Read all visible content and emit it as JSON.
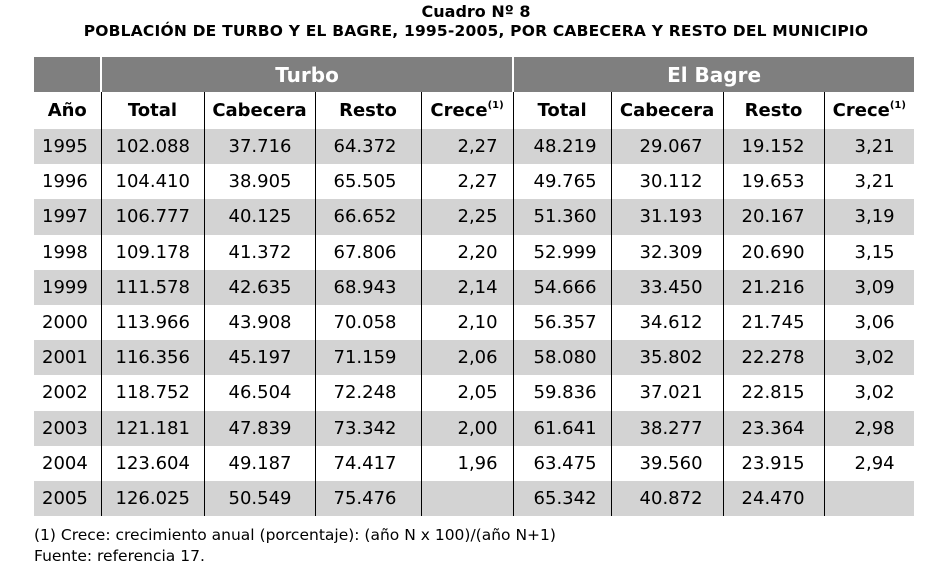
{
  "title": "Cuadro Nº 8",
  "subtitle": "POBLACIÓN DE TURBO Y EL BAGRE, 1995-2005, POR CABECERA Y RESTO DEL MUNICIPIO",
  "groups": {
    "turbo": "Turbo",
    "el_bagre": "El Bagre"
  },
  "headers": {
    "year": "Año",
    "total": "Total",
    "cabecera": "Cabecera",
    "resto": "Resto",
    "crece": "Crece",
    "crece_note": "(1)"
  },
  "rows": [
    [
      "1995",
      "102.088",
      "37.716",
      "64.372",
      "2,27",
      "48.219",
      "29.067",
      "19.152",
      "3,21"
    ],
    [
      "1996",
      "104.410",
      "38.905",
      "65.505",
      "2,27",
      "49.765",
      "30.112",
      "19.653",
      "3,21"
    ],
    [
      "1997",
      "106.777",
      "40.125",
      "66.652",
      "2,25",
      "51.360",
      "31.193",
      "20.167",
      "3,19"
    ],
    [
      "1998",
      "109.178",
      "41.372",
      "67.806",
      "2,20",
      "52.999",
      "32.309",
      "20.690",
      "3,15"
    ],
    [
      "1999",
      "111.578",
      "42.635",
      "68.943",
      "2,14",
      "54.666",
      "33.450",
      "21.216",
      "3,09"
    ],
    [
      "2000",
      "113.966",
      "43.908",
      "70.058",
      "2,10",
      "56.357",
      "34.612",
      "21.745",
      "3,06"
    ],
    [
      "2001",
      "116.356",
      "45.197",
      "71.159",
      "2,06",
      "58.080",
      "35.802",
      "22.278",
      "3,02"
    ],
    [
      "2002",
      "118.752",
      "46.504",
      "72.248",
      "2,05",
      "59.836",
      "37.021",
      "22.815",
      "3,02"
    ],
    [
      "2003",
      "121.181",
      "47.839",
      "73.342",
      "2,00",
      "61.641",
      "38.277",
      "23.364",
      "2,98"
    ],
    [
      "2004",
      "123.604",
      "49.187",
      "74.417",
      "1,96",
      "63.475",
      "39.560",
      "23.915",
      "2,94"
    ],
    [
      "2005",
      "126.025",
      "50.549",
      "75.476",
      "",
      "65.342",
      "40.872",
      "24.470",
      ""
    ]
  ],
  "notes": {
    "note1": "(1) Crece: crecimiento anual (porcentaje): (año N x 100)/(año N+1)",
    "source": "Fuente:  referencia 17."
  },
  "colors": {
    "header_bg": "#7f7f7f",
    "row_shade": "#d3d3d3"
  }
}
